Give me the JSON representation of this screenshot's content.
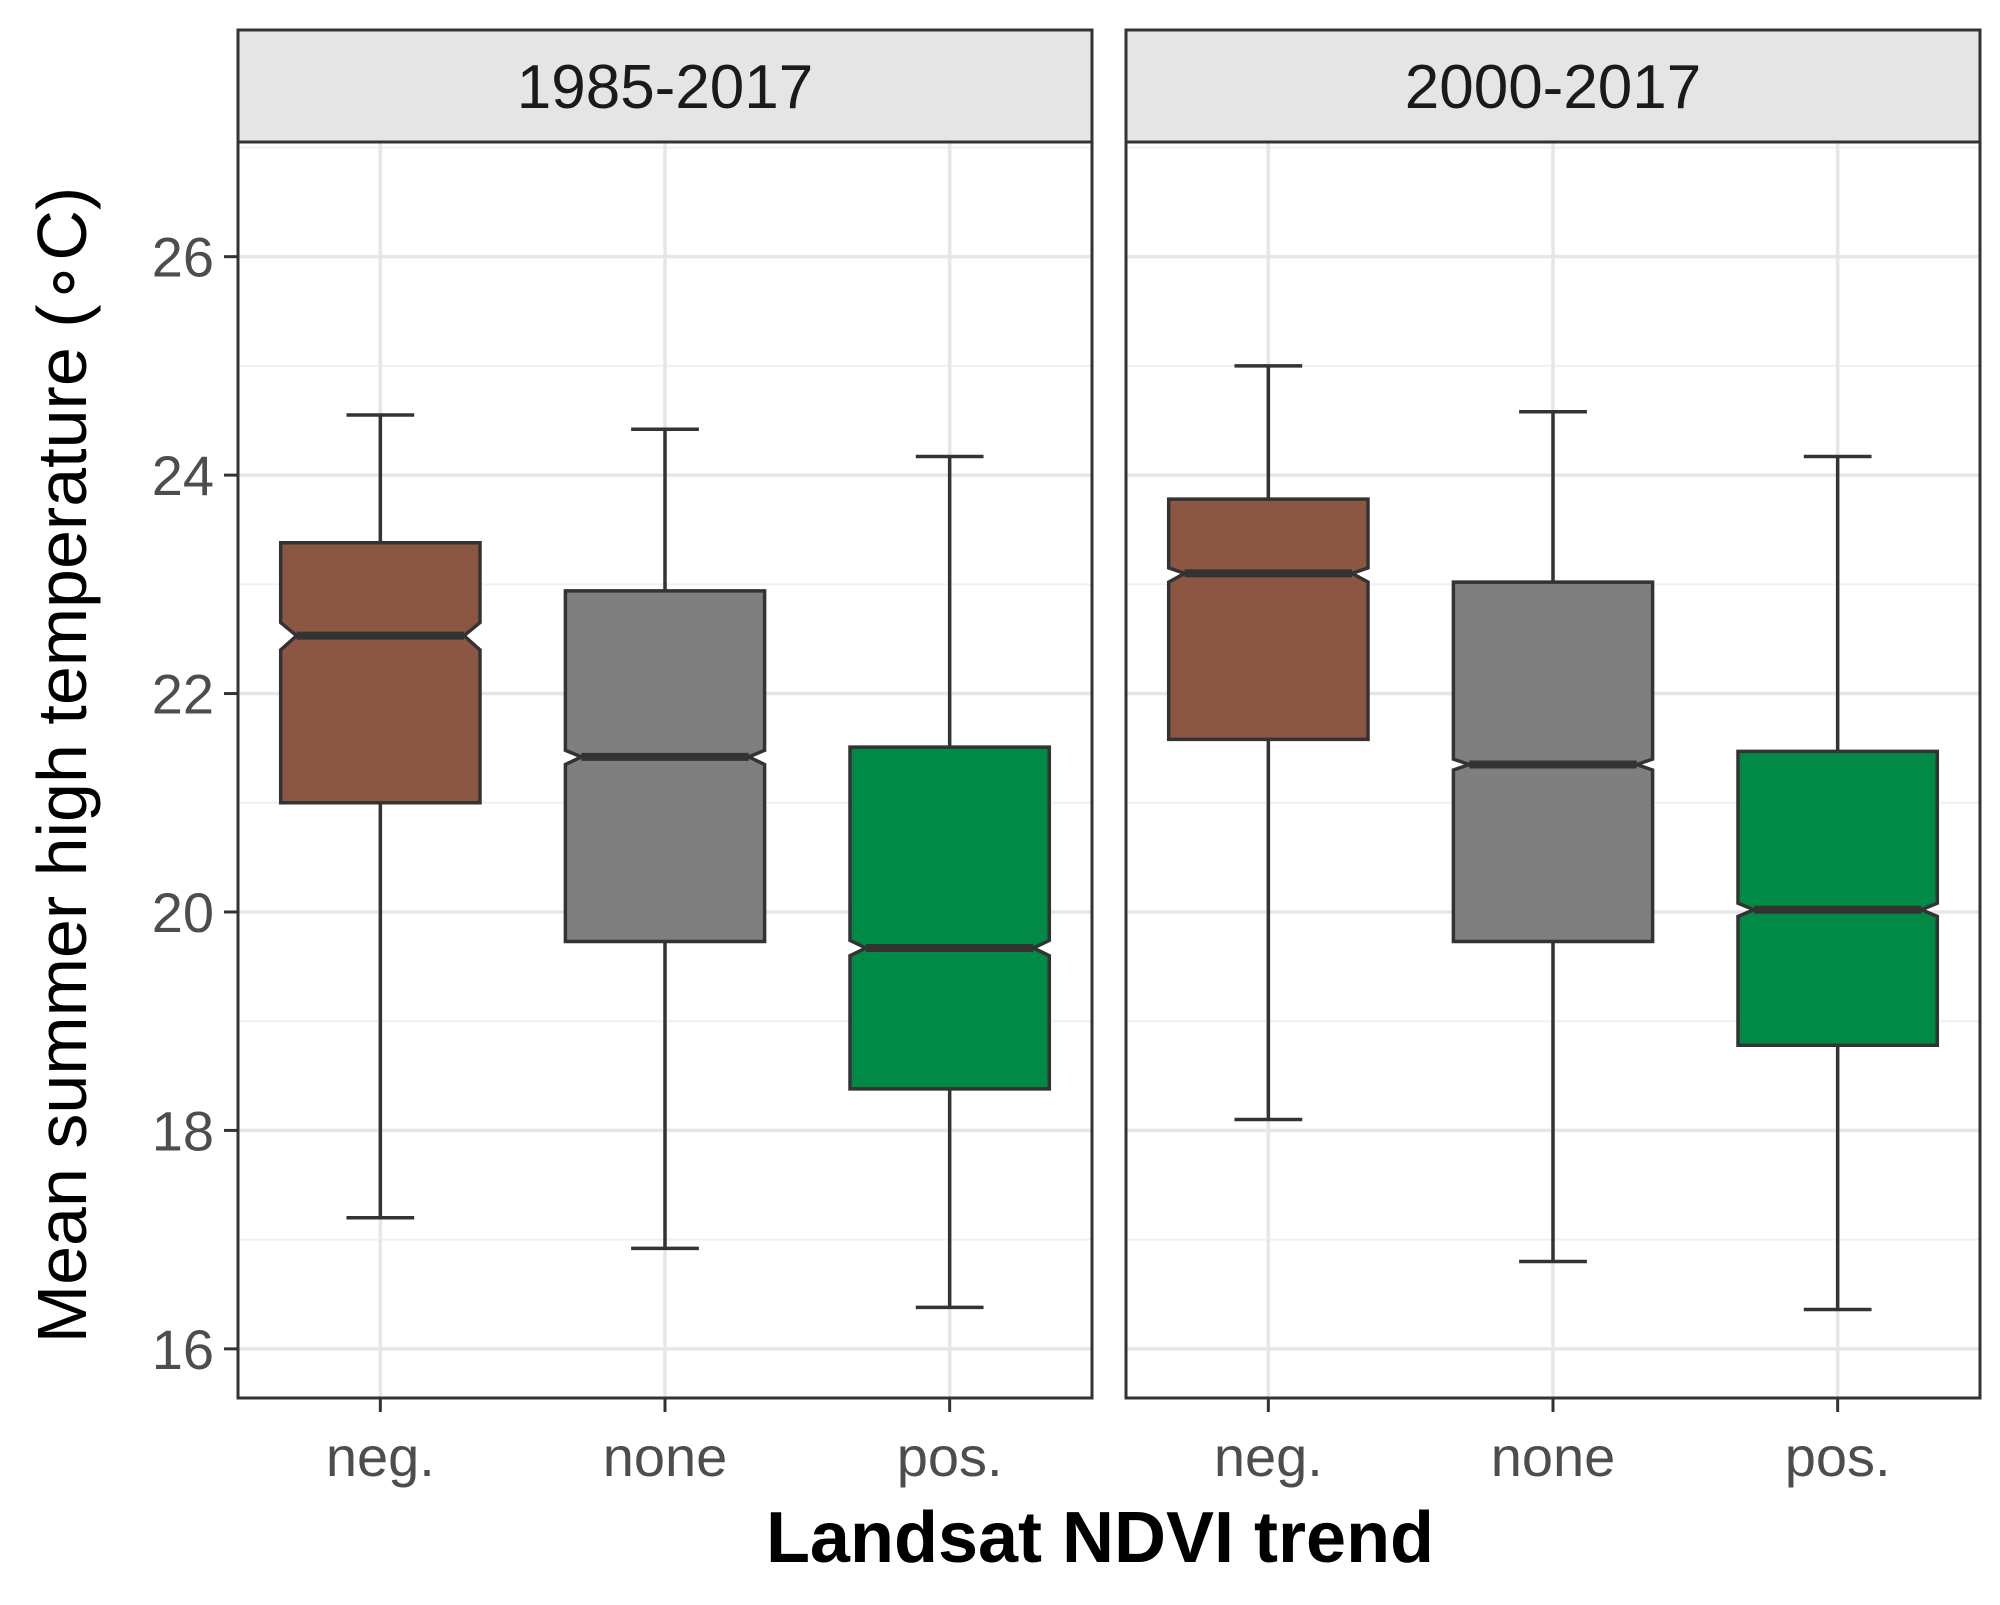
{
  "chart_data": {
    "type": "boxplot",
    "xlabel": "Landsat NDVI trend",
    "ylabel": "Mean summer high temperature (∘C)",
    "ylim": [
      15.55,
      27.05
    ],
    "yticks": [
      "16",
      "18",
      "20",
      "22",
      "24",
      "26"
    ],
    "categories": [
      "neg.",
      "none",
      "pos."
    ],
    "notched": true,
    "colors": {
      "neg.": "#8B5743",
      "none": "#7F7F7F",
      "pos.": "#008A45"
    },
    "panels": [
      {
        "label": "1985-2017",
        "boxes": [
          {
            "category": "neg.",
            "min": 17.2,
            "q1": 21.0,
            "median": 22.53,
            "q3": 23.38,
            "max": 24.55,
            "notch_low": 22.4,
            "notch_high": 22.65
          },
          {
            "category": "none",
            "min": 16.92,
            "q1": 19.73,
            "median": 21.42,
            "q3": 22.94,
            "max": 24.42,
            "notch_low": 21.35,
            "notch_high": 21.48
          },
          {
            "category": "pos.",
            "min": 16.38,
            "q1": 18.38,
            "median": 19.67,
            "q3": 21.51,
            "max": 24.17,
            "notch_low": 19.6,
            "notch_high": 19.74
          }
        ]
      },
      {
        "label": "2000-2017",
        "boxes": [
          {
            "category": "neg.",
            "min": 18.1,
            "q1": 21.58,
            "median": 23.1,
            "q3": 23.78,
            "max": 25.0,
            "notch_low": 23.02,
            "notch_high": 23.15
          },
          {
            "category": "none",
            "min": 16.8,
            "q1": 19.73,
            "median": 21.35,
            "q3": 23.02,
            "max": 24.58,
            "notch_low": 21.3,
            "notch_high": 21.4
          },
          {
            "category": "pos.",
            "min": 16.36,
            "q1": 18.78,
            "median": 20.02,
            "q3": 21.47,
            "max": 24.17,
            "notch_low": 19.96,
            "notch_high": 20.08
          }
        ]
      }
    ]
  }
}
